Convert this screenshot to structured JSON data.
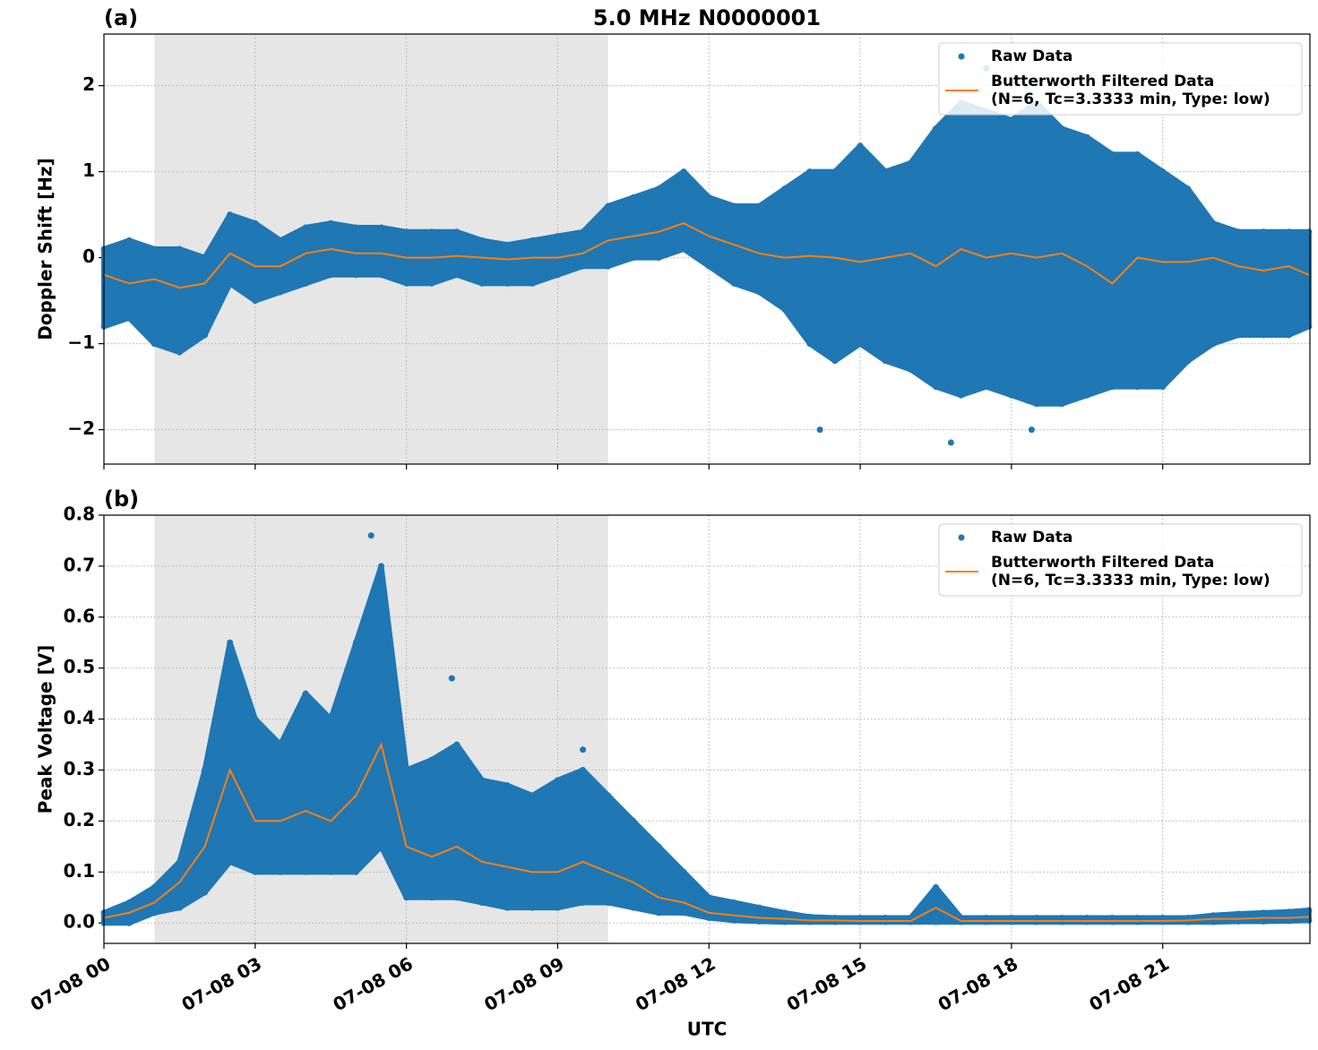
{
  "chart_data": [
    {
      "type": "scatter",
      "panel_label": "(a)",
      "title": "5.0 MHz N0000001",
      "y_label": "Doppler Shift [Hz]",
      "xlim": [
        0,
        23.92
      ],
      "xticks": [
        0,
        3,
        6,
        9,
        12,
        15,
        18,
        21
      ],
      "ylim": [
        -2.4,
        2.6
      ],
      "yticks": [
        {
          "value": -2,
          "label": "−2"
        },
        {
          "value": -1,
          "label": "−1"
        },
        0,
        1,
        2
      ],
      "grid": true,
      "shaded_span": [
        1,
        10
      ],
      "legend_loc": "upper right",
      "series": [
        {
          "name": "Raw Data",
          "color": "#1f77b4",
          "x": [
            0,
            0,
            0.5,
            0.5,
            1,
            1,
            1.5,
            1.5,
            2,
            2,
            2.5,
            2.5,
            3,
            3,
            3.5,
            3.5,
            4,
            4,
            4.5,
            4.5,
            5,
            5,
            5.5,
            5.5,
            6,
            6,
            6.5,
            6.5,
            7,
            7,
            7.5,
            7.5,
            8,
            8,
            8.5,
            8.5,
            9,
            9,
            9.5,
            9.5,
            10,
            10,
            10.5,
            10.5,
            11,
            11,
            11.5,
            11.5,
            12,
            12,
            12.5,
            12.5,
            13,
            13,
            13.5,
            13.5,
            14,
            14,
            14.5,
            14.5,
            15,
            15,
            15.5,
            15.5,
            16,
            16,
            16.5,
            16.5,
            17,
            17,
            17.5,
            17.5,
            18,
            18,
            18.5,
            18.5,
            19,
            19,
            19.5,
            19.5,
            20,
            20,
            20.5,
            20.5,
            21,
            21,
            21.5,
            21.5,
            22,
            22,
            22.5,
            22.5,
            23,
            23,
            23.5,
            23.5,
            23.9,
            23.9,
            14.2,
            16.8,
            18.4,
            17.5,
            18.3
          ],
          "values": [
            0.1,
            -0.8,
            0.2,
            -0.7,
            0.1,
            -1.0,
            0.1,
            -1.1,
            0.0,
            -0.9,
            0.5,
            -0.3,
            0.4,
            -0.5,
            0.2,
            -0.4,
            0.35,
            -0.3,
            0.4,
            -0.2,
            0.35,
            -0.2,
            0.35,
            -0.2,
            0.3,
            -0.3,
            0.3,
            -0.3,
            0.3,
            -0.2,
            0.2,
            -0.3,
            0.15,
            -0.3,
            0.2,
            -0.3,
            0.25,
            -0.2,
            0.3,
            -0.1,
            0.6,
            -0.1,
            0.7,
            0.0,
            0.8,
            0.0,
            1.0,
            0.1,
            0.7,
            -0.1,
            0.6,
            -0.3,
            0.6,
            -0.4,
            0.8,
            -0.6,
            1.0,
            -1.0,
            1.0,
            -1.2,
            1.3,
            -1.0,
            1.0,
            -1.2,
            1.1,
            -1.3,
            1.5,
            -1.5,
            1.8,
            -1.6,
            1.7,
            -1.5,
            1.6,
            -1.6,
            1.8,
            -1.7,
            1.5,
            -1.7,
            1.4,
            -1.6,
            1.2,
            -1.5,
            1.2,
            -1.5,
            1.0,
            -1.5,
            0.8,
            -1.2,
            0.4,
            -1.0,
            0.3,
            -0.9,
            0.3,
            -0.9,
            0.3,
            -0.9,
            0.3,
            -0.8,
            -2.0,
            -2.15,
            -2.0,
            2.2,
            2.0
          ]
        },
        {
          "name": "Butterworth Filtered Data\n(N=6, Tc=3.3333 min, Type: low)",
          "color": "#ff7f0e",
          "x": [
            0,
            0.5,
            1,
            1.5,
            2,
            2.5,
            3,
            3.5,
            4,
            4.5,
            5,
            5.5,
            6,
            6.5,
            7,
            7.5,
            8,
            8.5,
            9,
            9.5,
            10,
            10.5,
            11,
            11.5,
            12,
            12.5,
            13,
            13.5,
            14,
            14.5,
            15,
            15.5,
            16,
            16.5,
            17,
            17.5,
            18,
            18.5,
            19,
            19.5,
            20,
            20.5,
            21,
            21.5,
            22,
            22.5,
            23,
            23.5,
            23.9
          ],
          "values": [
            -0.2,
            -0.3,
            -0.25,
            -0.35,
            -0.3,
            0.05,
            -0.1,
            -0.1,
            0.05,
            0.1,
            0.05,
            0.05,
            0,
            0,
            0.02,
            0,
            -0.02,
            0,
            0,
            0.05,
            0.2,
            0.25,
            0.3,
            0.4,
            0.25,
            0.15,
            0.05,
            0,
            0.02,
            0,
            -0.05,
            0,
            0.05,
            -0.1,
            0.1,
            0,
            0.05,
            0,
            0.05,
            -0.1,
            -0.3,
            0,
            -0.05,
            -0.05,
            0,
            -0.1,
            -0.15,
            -0.1,
            -0.2
          ]
        }
      ]
    },
    {
      "type": "scatter",
      "panel_label": "(b)",
      "y_label": "Peak Voltage [V]",
      "x_label": "UTC",
      "xlim": [
        0,
        23.92
      ],
      "xticks": [
        {
          "value": 0,
          "label": "07-08 00"
        },
        {
          "value": 3,
          "label": "07-08 03"
        },
        {
          "value": 6,
          "label": "07-08 06"
        },
        {
          "value": 9,
          "label": "07-08 09"
        },
        {
          "value": 12,
          "label": "07-08 12"
        },
        {
          "value": 15,
          "label": "07-08 15"
        },
        {
          "value": 18,
          "label": "07-08 18"
        },
        {
          "value": 21,
          "label": "07-08 21"
        }
      ],
      "ylim": [
        -0.04,
        0.8
      ],
      "yticks": [
        {
          "value": 0,
          "label": "0.0"
        },
        0.1,
        0.2,
        0.3,
        0.4,
        0.5,
        0.6,
        0.7,
        0.8
      ],
      "grid": true,
      "shaded_span": [
        1,
        10
      ],
      "legend_loc": "upper right",
      "series": [
        {
          "name": "Raw Data",
          "color": "#1f77b4",
          "x": [
            0,
            0,
            0.5,
            0.5,
            1,
            1,
            1.5,
            1.5,
            2,
            2,
            2.5,
            2.5,
            3,
            3,
            3.5,
            3.5,
            4,
            4,
            4.5,
            4.5,
            5,
            5,
            5.5,
            5.5,
            6,
            6,
            6.5,
            6.5,
            7,
            7,
            7.5,
            7.5,
            8,
            8,
            8.5,
            8.5,
            9,
            9,
            9.5,
            9.5,
            10,
            10,
            10.5,
            10.5,
            11,
            11,
            11.5,
            11.5,
            12,
            12,
            12.5,
            12.5,
            13,
            13,
            13.5,
            13.5,
            14,
            14,
            14.5,
            14.5,
            15,
            15,
            15.5,
            15.5,
            16,
            16,
            16.5,
            16.5,
            17,
            17,
            17.5,
            17.5,
            18,
            18,
            18.5,
            18.5,
            19,
            19,
            19.5,
            19.5,
            20,
            20,
            20.5,
            20.5,
            21,
            21,
            21.5,
            21.5,
            22,
            22,
            22.5,
            22.5,
            23,
            23,
            23.5,
            23.5,
            23.9,
            23.9,
            5.3,
            6.9,
            9.5
          ],
          "values": [
            0.02,
            0,
            0.04,
            0,
            0.07,
            0.02,
            0.12,
            0.03,
            0.3,
            0.06,
            0.55,
            0.12,
            0.4,
            0.1,
            0.35,
            0.1,
            0.45,
            0.1,
            0.4,
            0.1,
            0.55,
            0.1,
            0.7,
            0.15,
            0.3,
            0.05,
            0.32,
            0.05,
            0.35,
            0.05,
            0.28,
            0.04,
            0.27,
            0.03,
            0.25,
            0.03,
            0.28,
            0.03,
            0.3,
            0.04,
            0.25,
            0.04,
            0.2,
            0.03,
            0.15,
            0.02,
            0.1,
            0.02,
            0.05,
            0.01,
            0.04,
            0.005,
            0.03,
            0.003,
            0.02,
            0.002,
            0.012,
            0.002,
            0.01,
            0.002,
            0.01,
            0.002,
            0.01,
            0.002,
            0.01,
            0.002,
            0.07,
            0.002,
            0.01,
            0.002,
            0.01,
            0.002,
            0.01,
            0.002,
            0.01,
            0.002,
            0.01,
            0.002,
            0.01,
            0.002,
            0.01,
            0.002,
            0.01,
            0.002,
            0.01,
            0.002,
            0.01,
            0.002,
            0.015,
            0.002,
            0.018,
            0.003,
            0.02,
            0.003,
            0.022,
            0.004,
            0.025,
            0.005,
            0.76,
            0.48,
            0.34
          ]
        },
        {
          "name": "Butterworth Filtered Data\n(N=6, Tc=3.3333 min, Type: low)",
          "color": "#ff7f0e",
          "x": [
            0,
            0.5,
            1,
            1.5,
            2,
            2.5,
            3,
            3.5,
            4,
            4.5,
            5,
            5.5,
            6,
            6.5,
            7,
            7.5,
            8,
            8.5,
            9,
            9.5,
            10,
            10.5,
            11,
            11.5,
            12,
            12.5,
            13,
            13.5,
            14,
            14.5,
            15,
            15.5,
            16,
            16.5,
            17,
            17.5,
            18,
            18.5,
            19,
            19.5,
            20,
            20.5,
            21,
            21.5,
            22,
            22.5,
            23,
            23.5,
            23.9
          ],
          "values": [
            0.01,
            0.02,
            0.04,
            0.08,
            0.15,
            0.3,
            0.2,
            0.2,
            0.22,
            0.2,
            0.25,
            0.35,
            0.15,
            0.13,
            0.15,
            0.12,
            0.11,
            0.1,
            0.1,
            0.12,
            0.1,
            0.08,
            0.05,
            0.04,
            0.02,
            0.015,
            0.01,
            0.008,
            0.005,
            0.005,
            0.004,
            0.004,
            0.004,
            0.03,
            0.004,
            0.004,
            0.004,
            0.004,
            0.004,
            0.004,
            0.004,
            0.004,
            0.004,
            0.005,
            0.008,
            0.008,
            0.01,
            0.01,
            0.012
          ]
        }
      ]
    }
  ]
}
